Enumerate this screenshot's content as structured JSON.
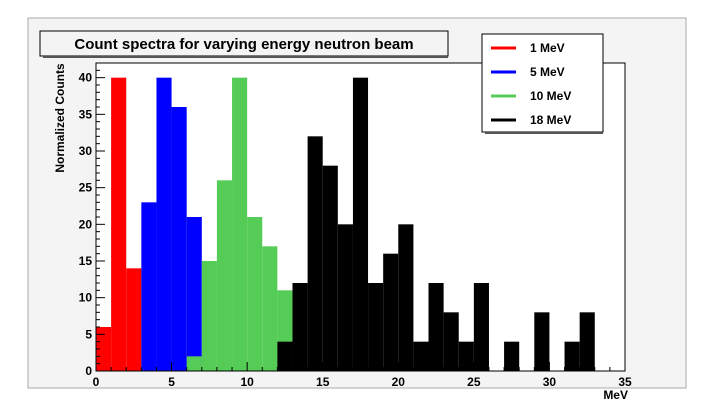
{
  "chart_data": {
    "type": "bar",
    "title": "Count spectra for varying energy neutron beam",
    "xlabel": "MeV",
    "ylabel": "Normalized Counts",
    "xlim": [
      0,
      35
    ],
    "ylim": [
      0,
      42
    ],
    "xticks": [
      0,
      5,
      10,
      15,
      20,
      25,
      30,
      35
    ],
    "yticks": [
      0,
      5,
      10,
      15,
      20,
      25,
      30,
      35,
      40
    ],
    "grid": false,
    "legend_position": "top-right",
    "bin_width": 1,
    "series": [
      {
        "name": "1 MeV",
        "color": "#ff0000",
        "bins": [
          {
            "x0": 0,
            "x1": 1,
            "value": 6
          },
          {
            "x0": 1,
            "x1": 2,
            "value": 40
          },
          {
            "x0": 2,
            "x1": 3,
            "value": 14
          }
        ]
      },
      {
        "name": "5 MeV",
        "color": "#0000ff",
        "bins": [
          {
            "x0": 3,
            "x1": 4,
            "value": 23
          },
          {
            "x0": 4,
            "x1": 5,
            "value": 40
          },
          {
            "x0": 5,
            "x1": 6,
            "value": 36
          },
          {
            "x0": 6,
            "x1": 7,
            "value": 21
          }
        ]
      },
      {
        "name": "10 MeV",
        "color": "#55cc55",
        "bins": [
          {
            "x0": 6,
            "x1": 7,
            "value": 2
          },
          {
            "x0": 7,
            "x1": 8,
            "value": 15
          },
          {
            "x0": 8,
            "x1": 9,
            "value": 26
          },
          {
            "x0": 9,
            "x1": 10,
            "value": 40
          },
          {
            "x0": 10,
            "x1": 11,
            "value": 21
          },
          {
            "x0": 11,
            "x1": 12,
            "value": 17
          },
          {
            "x0": 12,
            "x1": 13,
            "value": 11
          }
        ]
      },
      {
        "name": "18 MeV",
        "color": "#000000",
        "bins": [
          {
            "x0": 12,
            "x1": 13,
            "value": 4
          },
          {
            "x0": 13,
            "x1": 14,
            "value": 12
          },
          {
            "x0": 14,
            "x1": 15,
            "value": 32
          },
          {
            "x0": 15,
            "x1": 16,
            "value": 28
          },
          {
            "x0": 16,
            "x1": 17,
            "value": 20
          },
          {
            "x0": 17,
            "x1": 18,
            "value": 40
          },
          {
            "x0": 18,
            "x1": 19,
            "value": 12
          },
          {
            "x0": 19,
            "x1": 20,
            "value": 16
          },
          {
            "x0": 20,
            "x1": 21,
            "value": 20
          },
          {
            "x0": 21,
            "x1": 22,
            "value": 4
          },
          {
            "x0": 22,
            "x1": 23,
            "value": 12
          },
          {
            "x0": 23,
            "x1": 24,
            "value": 8
          },
          {
            "x0": 24,
            "x1": 25,
            "value": 4
          },
          {
            "x0": 25,
            "x1": 26,
            "value": 12
          },
          {
            "x0": 27,
            "x1": 28,
            "value": 4
          },
          {
            "x0": 29,
            "x1": 30,
            "value": 8
          },
          {
            "x0": 31,
            "x1": 32,
            "value": 4
          },
          {
            "x0": 32,
            "x1": 33,
            "value": 8
          }
        ]
      }
    ]
  }
}
